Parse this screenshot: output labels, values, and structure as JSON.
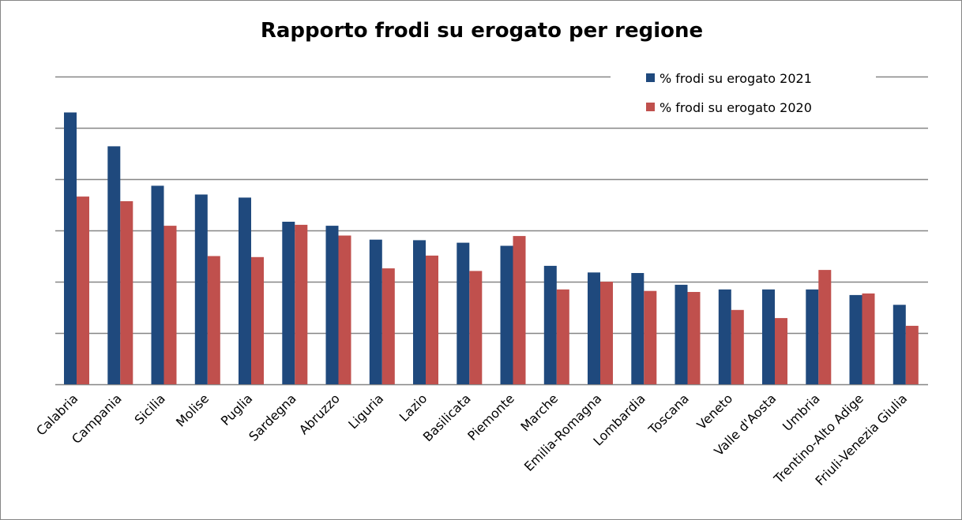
{
  "chart_data": {
    "type": "bar",
    "title": "Rapporto frodi su erogato per regione",
    "xlabel": "",
    "ylabel": "",
    "categories": [
      "Calabria",
      "Campania",
      "Sicilia",
      "Molise",
      "Puglia",
      "Sardegna",
      "Abruzzo",
      "Liguria",
      "Lazio",
      "Basilicata",
      "Piemonte",
      "Marche",
      "Emilia-Romagna",
      "Lombardia",
      "Toscana",
      "Veneto",
      "Valle d'Aosta",
      "Umbria",
      "Trentino-Alto Adige",
      "Friuli-Venezia Giulia"
    ],
    "series": [
      {
        "name": "% frodi su erogato 2021",
        "color": "#1f497d",
        "values": [
          5.3,
          4.64,
          3.87,
          3.7,
          3.64,
          3.17,
          3.09,
          2.82,
          2.81,
          2.76,
          2.7,
          2.31,
          2.18,
          2.17,
          1.94,
          1.85,
          1.85,
          1.85,
          1.74,
          1.55
        ]
      },
      {
        "name": "% frodi su erogato 2020",
        "color": "#c0504d",
        "values": [
          3.66,
          3.57,
          3.09,
          2.5,
          2.48,
          3.11,
          2.9,
          2.26,
          2.51,
          2.21,
          2.89,
          1.85,
          2.0,
          1.82,
          1.8,
          1.45,
          1.29,
          2.23,
          1.77,
          1.14
        ]
      }
    ],
    "ylim": [
      0,
      6
    ],
    "ytick_step": 1,
    "grid": true,
    "legend_position": "top-right"
  }
}
